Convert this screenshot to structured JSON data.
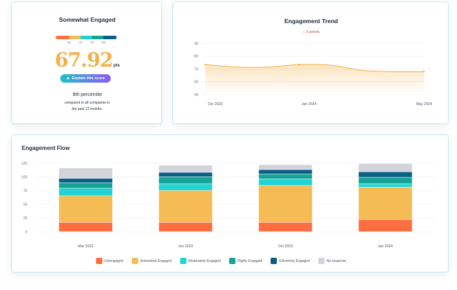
{
  "score_card": {
    "title": "Somewhat Engaged",
    "scale_ticks": [
      "64",
      "72",
      "78",
      "83"
    ],
    "scale_colors": [
      "#ff6e40",
      "#f5bb55",
      "#22d3d3",
      "#16a397",
      "#0a5f85"
    ],
    "score": "67.92",
    "score_unit": "pts",
    "score_color": "#f4b14a",
    "explain_label": "Explain this score",
    "percentile": "9th percentile",
    "compare_text_1": "compared to all companies in",
    "compare_text_2": "the past 12 months."
  },
  "trend_card": {
    "title": "Engagement Trend",
    "change_text": "3 points",
    "change_color": "#e0443a",
    "chart_data": {
      "type": "area",
      "y_ticks": [
        "90",
        "80",
        "70",
        "60",
        "50"
      ],
      "ylim": [
        50,
        90
      ],
      "x_labels": [
        "Oct 2023",
        "Jan 2024",
        "May 2024"
      ],
      "x": [
        "Oct 2023",
        "Nov 2023",
        "Dec 2023",
        "Jan 2024",
        "Feb 2024",
        "Mar 2024",
        "Apr 2024",
        "May 2024"
      ],
      "values": [
        73.5,
        71.5,
        71.5,
        73.5,
        73,
        69,
        68,
        68
      ],
      "line_color": "#f4b14a",
      "grid": true
    }
  },
  "flow_card": {
    "title": "Engagement Flow",
    "chart_data": {
      "type": "bar",
      "stacked": true,
      "categories": [
        "Mar 2023",
        "Jun 2023",
        "Oct 2023",
        "Jan 2024"
      ],
      "y_ticks": [
        "125",
        "100",
        "75",
        "50",
        "25",
        "0"
      ],
      "ylim": [
        0,
        125
      ],
      "grid": true,
      "series": [
        {
          "name": "Disengaged",
          "color": "#ff6e40",
          "values": [
            17,
            17,
            17,
            22
          ]
        },
        {
          "name": "Somewhat Engaged",
          "color": "#f5bb55",
          "values": [
            48,
            58,
            67,
            59
          ]
        },
        {
          "name": "Moderately Engaged",
          "color": "#22d3d3",
          "values": [
            14,
            12,
            12,
            6
          ]
        },
        {
          "name": "Highly Engaged",
          "color": "#16a397",
          "values": [
            10,
            13,
            9,
            12
          ]
        },
        {
          "name": "Extremely Engaged",
          "color": "#0a5f85",
          "values": [
            8,
            8,
            8,
            10
          ]
        },
        {
          "name": "No response",
          "color": "#d3d3dc",
          "values": [
            19,
            13,
            9,
            15
          ]
        }
      ]
    }
  }
}
